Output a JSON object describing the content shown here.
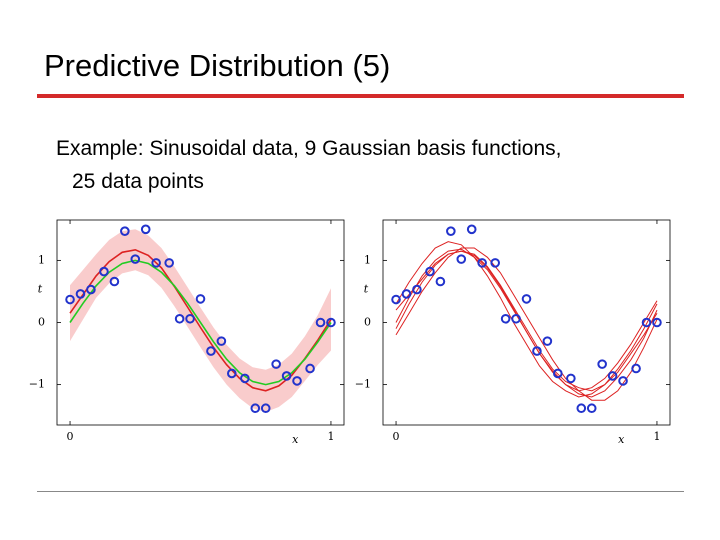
{
  "header": {
    "title": "Predictive Distribution (5)"
  },
  "body": [
    "Example: Sinusoidal data, 9 Gaussian basis functions,",
    "25 data points"
  ],
  "chart_data": [
    {
      "type": "line",
      "x_label": "x",
      "y_label": "t",
      "xlim": [
        -0.05,
        1.05
      ],
      "ylim": [
        -1.65,
        1.65
      ],
      "xticks": [
        0,
        1
      ],
      "yticks": [
        {
          "value": -1,
          "label": "−1"
        },
        0,
        1
      ],
      "x": [
        0,
        0.05,
        0.1,
        0.15,
        0.2,
        0.25,
        0.3,
        0.35,
        0.4,
        0.45,
        0.5,
        0.55,
        0.6,
        0.65,
        0.7,
        0.75,
        0.8,
        0.85,
        0.9,
        0.95,
        1
      ],
      "band": {
        "color": "#f9cccc",
        "upper": [
          0.6,
          0.85,
          1.1,
          1.33,
          1.47,
          1.5,
          1.4,
          1.2,
          0.9,
          0.57,
          0.24,
          -0.08,
          -0.36,
          -0.58,
          -0.72,
          -0.76,
          -0.68,
          -0.5,
          -0.22,
          0.12,
          0.55
        ],
        "lower": [
          -0.3,
          0.05,
          0.4,
          0.63,
          0.79,
          0.84,
          0.76,
          0.56,
          0.26,
          -0.07,
          -0.4,
          -0.72,
          -1.0,
          -1.22,
          -1.38,
          -1.44,
          -1.36,
          -1.2,
          -0.94,
          -0.68,
          -0.45
        ]
      },
      "series": [
        {
          "color": "#dd2222",
          "values": [
            0.15,
            0.45,
            0.75,
            0.98,
            1.13,
            1.17,
            1.08,
            0.88,
            0.58,
            0.25,
            -0.08,
            -0.4,
            -0.68,
            -0.9,
            -1.05,
            -1.1,
            -1.02,
            -0.85,
            -0.58,
            -0.28,
            0.05
          ]
        },
        {
          "color": "#22cc22",
          "values": [
            0,
            0.31,
            0.59,
            0.81,
            0.95,
            1,
            0.95,
            0.81,
            0.59,
            0.31,
            0,
            -0.31,
            -0.59,
            -0.81,
            -0.95,
            -1,
            -0.95,
            -0.81,
            -0.59,
            -0.31,
            0
          ]
        }
      ],
      "points": {
        "color": "#2233cc",
        "x": [
          0,
          0.04,
          0.08,
          0.13,
          0.17,
          0.21,
          0.25,
          0.29,
          0.33,
          0.38,
          0.42,
          0.46,
          0.5,
          0.54,
          0.58,
          0.62,
          0.67,
          0.71,
          0.75,
          0.79,
          0.83,
          0.87,
          0.92,
          0.96,
          1
        ],
        "y": [
          0.37,
          0.46,
          0.53,
          0.82,
          0.66,
          1.47,
          1.02,
          1.5,
          0.96,
          0.96,
          0.06,
          0.06,
          0.38,
          -0.46,
          -0.3,
          -0.82,
          -0.9,
          -1.38,
          -1.38,
          -0.67,
          -0.86,
          -0.94,
          -0.74,
          0,
          0
        ]
      }
    },
    {
      "type": "line",
      "x_label": "x",
      "y_label": "t",
      "xlim": [
        -0.05,
        1.05
      ],
      "ylim": [
        -1.65,
        1.65
      ],
      "xticks": [
        0,
        1
      ],
      "yticks": [
        {
          "value": -1,
          "label": "−1"
        },
        0,
        1
      ],
      "x": [
        0,
        0.05,
        0.1,
        0.15,
        0.2,
        0.25,
        0.3,
        0.35,
        0.4,
        0.45,
        0.5,
        0.55,
        0.6,
        0.65,
        0.7,
        0.75,
        0.8,
        0.85,
        0.9,
        0.95,
        1
      ],
      "series": [
        {
          "color": "#dd2222",
          "values": [
            0.3,
            0.65,
            0.95,
            1.2,
            1.3,
            1.25,
            1.05,
            0.75,
            0.4,
            0.0,
            -0.35,
            -0.7,
            -0.95,
            -1.1,
            -1.2,
            -1.15,
            -1.0,
            -0.75,
            -0.45,
            -0.1,
            0.3
          ]
        },
        {
          "color": "#dd2222",
          "values": [
            -0.2,
            0.15,
            0.5,
            0.8,
            1.05,
            1.2,
            1.2,
            1.05,
            0.8,
            0.45,
            0.1,
            -0.25,
            -0.6,
            -0.9,
            -1.1,
            -1.25,
            -1.25,
            -1.1,
            -0.8,
            -0.4,
            0.05
          ]
        },
        {
          "color": "#dd2222",
          "values": [
            0.0,
            0.4,
            0.75,
            1.0,
            1.15,
            1.18,
            1.05,
            0.85,
            0.55,
            0.2,
            -0.15,
            -0.5,
            -0.8,
            -1.0,
            -1.1,
            -1.05,
            -0.9,
            -0.65,
            -0.35,
            0.0,
            0.35
          ]
        },
        {
          "color": "#dd2222",
          "values": [
            0.2,
            0.45,
            0.7,
            0.95,
            1.1,
            1.15,
            1.1,
            0.9,
            0.6,
            0.25,
            -0.1,
            -0.45,
            -0.75,
            -0.95,
            -1.05,
            -1.1,
            -1.0,
            -0.8,
            -0.5,
            -0.2,
            0.15
          ]
        },
        {
          "color": "#dd2222",
          "values": [
            -0.1,
            0.3,
            0.65,
            0.92,
            1.1,
            1.15,
            1.08,
            0.88,
            0.58,
            0.22,
            -0.15,
            -0.5,
            -0.78,
            -1.0,
            -1.15,
            -1.2,
            -1.1,
            -0.88,
            -0.6,
            -0.25,
            0.2
          ]
        }
      ],
      "points": {
        "color": "#2233cc",
        "x": [
          0,
          0.04,
          0.08,
          0.13,
          0.17,
          0.21,
          0.25,
          0.29,
          0.33,
          0.38,
          0.42,
          0.46,
          0.5,
          0.54,
          0.58,
          0.62,
          0.67,
          0.71,
          0.75,
          0.79,
          0.83,
          0.87,
          0.92,
          0.96,
          1
        ],
        "y": [
          0.37,
          0.46,
          0.53,
          0.82,
          0.66,
          1.47,
          1.02,
          1.5,
          0.96,
          0.96,
          0.06,
          0.06,
          0.38,
          -0.46,
          -0.3,
          -0.82,
          -0.9,
          -1.38,
          -1.38,
          -0.67,
          -0.86,
          -0.94,
          -0.74,
          0,
          0
        ]
      }
    }
  ]
}
